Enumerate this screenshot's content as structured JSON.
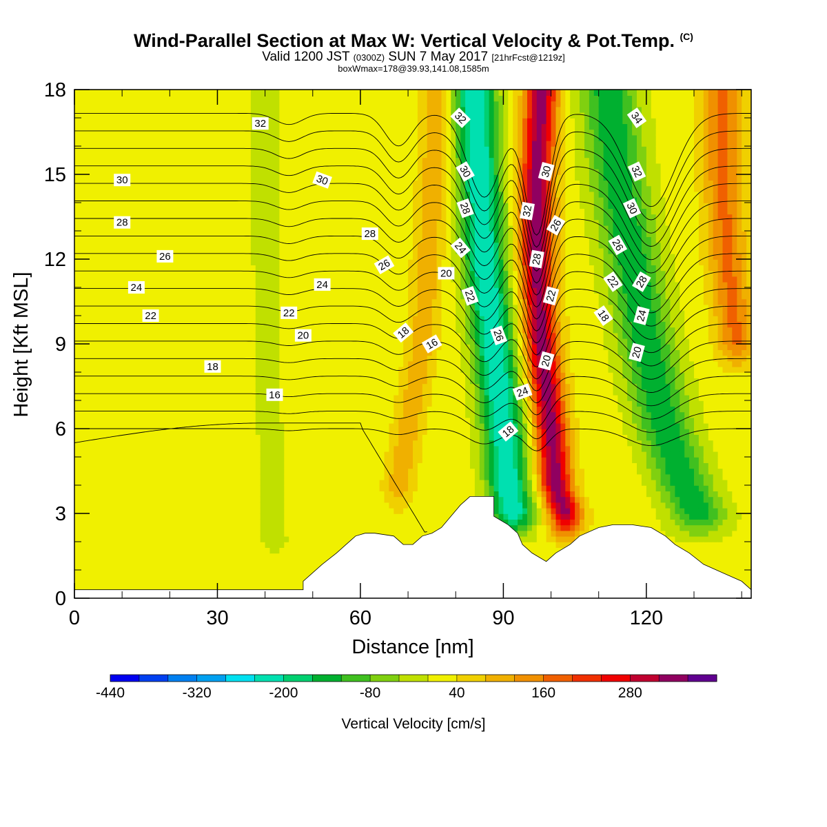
{
  "header": {
    "title": "Wind-Parallel Section at Max W: Vertical Velocity & Pot.Temp.",
    "title_tag": "(C)",
    "valid_a": "Valid 1200 JST ",
    "valid_b": "(0300Z)",
    "valid_c": " SUN 7 May 2017 ",
    "valid_d": "[21hrFcst@1219z]",
    "box_line": "boxWmax=178@39.93,141.08,1585m"
  },
  "chart_data": {
    "type": "heatmap",
    "title": "Wind-Parallel Section at Max W: Vertical Velocity & Pot.Temp.",
    "xlabel": "Distance [nm]",
    "ylabel": "Height [Kft MSL]",
    "xlim": [
      0,
      142
    ],
    "ylim": [
      0,
      18
    ],
    "x_ticks": [
      0,
      30,
      60,
      90,
      120
    ],
    "y_ticks": [
      0,
      3,
      6,
      9,
      12,
      15,
      18
    ],
    "colorbar": {
      "label": "Vertical Velocity [cm/s]",
      "min": -440,
      "step": 40,
      "tick_labels": [
        -440,
        -320,
        -200,
        -80,
        40,
        160,
        280
      ],
      "colors": [
        "#0000f0",
        "#0040f0",
        "#0080f0",
        "#00a0f0",
        "#00e0f0",
        "#00e0b0",
        "#00d070",
        "#00b030",
        "#40c020",
        "#80d010",
        "#c0e000",
        "#f0f000",
        "#f0d000",
        "#f0b000",
        "#f09000",
        "#f06000",
        "#f03000",
        "#f00000",
        "#c00030",
        "#900060",
        "#600090"
      ]
    },
    "terrain": {
      "x": [
        0,
        48,
        48,
        50,
        52,
        55,
        57,
        59,
        61,
        63,
        67,
        69,
        71,
        73,
        75,
        77,
        79,
        81,
        83,
        88,
        88,
        91,
        93,
        94,
        96,
        99,
        101,
        104,
        106,
        110,
        113,
        117,
        121,
        124,
        126,
        129,
        132,
        136,
        140,
        142
      ],
      "height": [
        0.3,
        0.3,
        0.6,
        0.9,
        1.2,
        1.6,
        1.9,
        2.2,
        2.3,
        2.3,
        2.2,
        1.9,
        1.9,
        2.2,
        2.3,
        2.5,
        2.9,
        3.3,
        3.6,
        3.6,
        2.9,
        2.6,
        2.3,
        1.9,
        1.6,
        1.3,
        1.6,
        1.9,
        2.2,
        2.5,
        2.6,
        2.6,
        2.5,
        2.2,
        1.9,
        1.6,
        1.2,
        0.9,
        0.6,
        0.3
      ]
    },
    "w_field": {
      "background": 20,
      "features": [
        {
          "name": "main updraft",
          "x": [
            98,
            97,
            97,
            98,
            100,
            101,
            103
          ],
          "height": [
            18,
            15,
            12,
            9,
            6,
            4,
            3
          ],
          "peak": 320,
          "width_nm": 3.5
        },
        {
          "name": "main downdraft",
          "x": [
            84,
            85,
            86,
            88,
            90,
            91,
            92
          ],
          "height": [
            18,
            15,
            12,
            9,
            6,
            4,
            3
          ],
          "peak": -260,
          "width_nm": 4.5
        },
        {
          "name": "east downdraft",
          "x": [
            112,
            114,
            117,
            120,
            124,
            128,
            131
          ],
          "height": [
            18,
            15,
            12,
            9,
            6,
            4,
            3
          ],
          "peak": -170,
          "width_nm": 6
        },
        {
          "name": "far east updraft",
          "x": [
            136,
            136,
            137,
            139
          ],
          "height": [
            18,
            15,
            12,
            9
          ],
          "peak": 150,
          "width_nm": 4
        },
        {
          "name": "west updraft",
          "x": [
            76,
            75,
            73,
            70,
            68
          ],
          "height": [
            18,
            14,
            9,
            6,
            4
          ],
          "peak": 90,
          "width_nm": 3
        },
        {
          "name": "west dry band",
          "x": [
            40,
            40,
            41,
            42
          ],
          "height": [
            18,
            12,
            6,
            2
          ],
          "peak": -30,
          "width_nm": 4
        }
      ]
    },
    "theta_contours": {
      "levels": [
        16,
        17,
        18,
        19,
        20,
        21,
        22,
        23,
        24,
        25,
        26,
        27,
        28,
        29,
        30,
        31,
        32,
        33,
        34
      ],
      "labels": [
        {
          "text": "32",
          "x": 39,
          "height": 16.8,
          "angle": 0
        },
        {
          "text": "30",
          "x": 10,
          "height": 14.8,
          "angle": 0
        },
        {
          "text": "30",
          "x": 52,
          "height": 14.8,
          "angle": 20
        },
        {
          "text": "28",
          "x": 10,
          "height": 13.3,
          "angle": 0
        },
        {
          "text": "28",
          "x": 62,
          "height": 12.9,
          "angle": 0
        },
        {
          "text": "26",
          "x": 19,
          "height": 12.1,
          "angle": 0
        },
        {
          "text": "26",
          "x": 65,
          "height": 11.8,
          "angle": -30
        },
        {
          "text": "24",
          "x": 13,
          "height": 11.0,
          "angle": 0
        },
        {
          "text": "24",
          "x": 52,
          "height": 11.1,
          "angle": 0
        },
        {
          "text": "22",
          "x": 16,
          "height": 10.0,
          "angle": 0
        },
        {
          "text": "22",
          "x": 45,
          "height": 10.1,
          "angle": 0
        },
        {
          "text": "20",
          "x": 48,
          "height": 9.3,
          "angle": 0
        },
        {
          "text": "20",
          "x": 78,
          "height": 11.5,
          "angle": 0
        },
        {
          "text": "18",
          "x": 29,
          "height": 8.2,
          "angle": 0
        },
        {
          "text": "18",
          "x": 69,
          "height": 9.4,
          "angle": -40
        },
        {
          "text": "16",
          "x": 42,
          "height": 7.2,
          "angle": 0
        },
        {
          "text": "16",
          "x": 75,
          "height": 9.0,
          "angle": -30
        },
        {
          "text": "32",
          "x": 81,
          "height": 17.0,
          "angle": 45
        },
        {
          "text": "30",
          "x": 82,
          "height": 15.1,
          "angle": 60
        },
        {
          "text": "28",
          "x": 82,
          "height": 13.8,
          "angle": 70
        },
        {
          "text": "24",
          "x": 81,
          "height": 12.4,
          "angle": 50
        },
        {
          "text": "22",
          "x": 83,
          "height": 10.7,
          "angle": 70
        },
        {
          "text": "26",
          "x": 89,
          "height": 9.3,
          "angle": 70
        },
        {
          "text": "24",
          "x": 94,
          "height": 7.3,
          "angle": -20
        },
        {
          "text": "18",
          "x": 91,
          "height": 5.9,
          "angle": -40
        },
        {
          "text": "32",
          "x": 95,
          "height": 13.7,
          "angle": -80
        },
        {
          "text": "30",
          "x": 99,
          "height": 15.1,
          "angle": -75
        },
        {
          "text": "26",
          "x": 101,
          "height": 13.2,
          "angle": -60
        },
        {
          "text": "28",
          "x": 97,
          "height": 12.0,
          "angle": -80
        },
        {
          "text": "22",
          "x": 100,
          "height": 10.7,
          "angle": -75
        },
        {
          "text": "20",
          "x": 99,
          "height": 8.4,
          "angle": -75
        },
        {
          "text": "34",
          "x": 118,
          "height": 17.0,
          "angle": 55
        },
        {
          "text": "32",
          "x": 118,
          "height": 15.1,
          "angle": 65
        },
        {
          "text": "30",
          "x": 117,
          "height": 13.8,
          "angle": 65
        },
        {
          "text": "26",
          "x": 114,
          "height": 12.5,
          "angle": 60
        },
        {
          "text": "22",
          "x": 113,
          "height": 11.2,
          "angle": 55
        },
        {
          "text": "28",
          "x": 119,
          "height": 11.2,
          "angle": -60
        },
        {
          "text": "18",
          "x": 111,
          "height": 10.0,
          "angle": 55
        },
        {
          "text": "24",
          "x": 119,
          "height": 10.0,
          "angle": -75
        },
        {
          "text": "20",
          "x": 118,
          "height": 8.7,
          "angle": -75
        }
      ]
    }
  }
}
